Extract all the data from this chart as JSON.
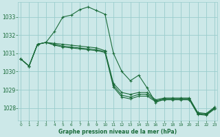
{
  "title": "Graphe pression niveau de la mer (hPa)",
  "bg_color": "#cce8e8",
  "grid_color": "#99cccc",
  "line_color": "#1a6b3a",
  "x_ticks": [
    0,
    1,
    2,
    3,
    4,
    5,
    6,
    7,
    8,
    9,
    10,
    11,
    12,
    13,
    14,
    15,
    16,
    17,
    18,
    19,
    20,
    21,
    22,
    23
  ],
  "y_ticks": [
    1028,
    1029,
    1030,
    1031,
    1032,
    1033
  ],
  "ylim": [
    1027.3,
    1033.8
  ],
  "xlim": [
    -0.3,
    23.3
  ],
  "series": [
    [
      1030.7,
      1030.3,
      1031.5,
      1031.6,
      1032.2,
      1033.0,
      1033.1,
      1033.4,
      1033.55,
      1033.35,
      1033.15,
      1031.0,
      1030.0,
      1029.5,
      1029.8,
      1029.1,
      1028.3,
      1028.5,
      1028.5,
      1028.5,
      1028.5,
      1027.7,
      1027.65,
      1028.0
    ],
    [
      1030.7,
      1030.3,
      1031.5,
      1031.6,
      1031.55,
      1031.5,
      1031.45,
      1031.4,
      1031.35,
      1031.3,
      1031.15,
      1029.35,
      1028.85,
      1028.75,
      1028.85,
      1028.85,
      1028.45,
      1028.55,
      1028.55,
      1028.55,
      1028.55,
      1027.75,
      1027.7,
      1028.05
    ],
    [
      1030.7,
      1030.3,
      1031.5,
      1031.6,
      1031.5,
      1031.4,
      1031.35,
      1031.3,
      1031.25,
      1031.2,
      1031.1,
      1029.25,
      1028.7,
      1028.6,
      1028.75,
      1028.75,
      1028.4,
      1028.5,
      1028.5,
      1028.5,
      1028.5,
      1027.7,
      1027.65,
      1028.0
    ],
    [
      1030.7,
      1030.3,
      1031.5,
      1031.6,
      1031.45,
      1031.35,
      1031.3,
      1031.25,
      1031.2,
      1031.15,
      1031.05,
      1029.15,
      1028.6,
      1028.5,
      1028.65,
      1028.65,
      1028.35,
      1028.45,
      1028.45,
      1028.45,
      1028.45,
      1027.65,
      1027.6,
      1027.95
    ]
  ]
}
